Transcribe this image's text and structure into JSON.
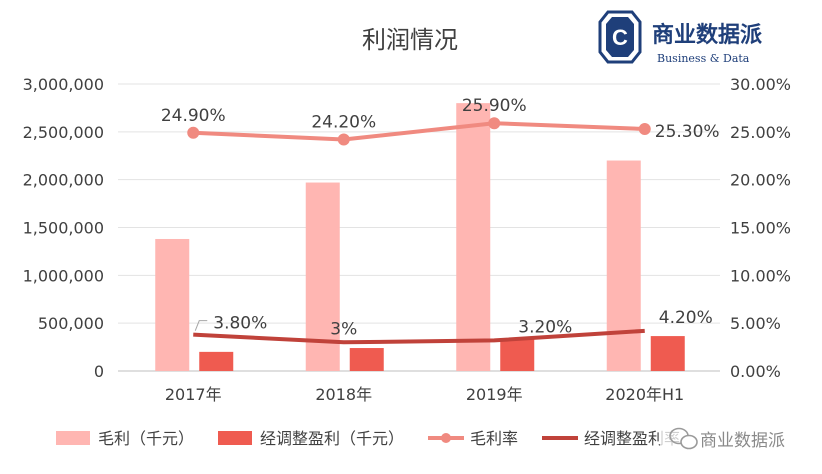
{
  "colors": {
    "gross_profit_bar": "#ffb6b2",
    "adjusted_profit_bar": "#ef5b50",
    "gross_margin_line": "#f08a80",
    "adjusted_margin_line": "#c0423a",
    "axis_text": "#404040",
    "logo": "#1f3f7a"
  },
  "logo": {
    "mark": "C",
    "name": "商业数据派",
    "tagline": "Business & Data"
  },
  "watermark": {
    "text": "商业数据派",
    "icon": "wechat-icon"
  },
  "chart_data": {
    "type": "bar",
    "title": "利润情况",
    "categories": [
      "2017年",
      "2018年",
      "2019年",
      "2020年H1"
    ],
    "y_left": {
      "min": 0,
      "max": 3000000,
      "step": 500000,
      "ticks": [
        "0",
        "500,000",
        "1,000,000",
        "1,500,000",
        "2,000,000",
        "2,500,000",
        "3,000,000"
      ]
    },
    "y_right": {
      "min": 0,
      "max": 30,
      "step": 5,
      "ticks": [
        "0.00%",
        "5.00%",
        "10.00%",
        "15.00%",
        "20.00%",
        "25.00%",
        "30.00%"
      ]
    },
    "grid": true,
    "legend_position": "bottom",
    "series": [
      {
        "name": "毛利（千元）",
        "type": "bar",
        "axis": "left",
        "color": "#ffb6b2",
        "values": [
          1380000,
          1970000,
          2800000,
          2200000
        ]
      },
      {
        "name": "经调整盈利（千元）",
        "type": "bar",
        "axis": "left",
        "color": "#ef5b50",
        "values": [
          200000,
          240000,
          340000,
          365000
        ]
      },
      {
        "name": "毛利率",
        "type": "line",
        "axis": "right",
        "color": "#f08a80",
        "markers": true,
        "values": [
          24.9,
          24.2,
          25.9,
          25.3
        ],
        "labels": [
          "24.90%",
          "24.20%",
          "25.90%",
          "25.30%"
        ]
      },
      {
        "name": "经调整盈利率",
        "type": "line",
        "axis": "right",
        "color": "#c0423a",
        "markers": false,
        "values": [
          3.8,
          3.0,
          3.2,
          4.2
        ],
        "labels": [
          "3.80%",
          "3%",
          "3.20%",
          "4.20%"
        ]
      }
    ]
  }
}
